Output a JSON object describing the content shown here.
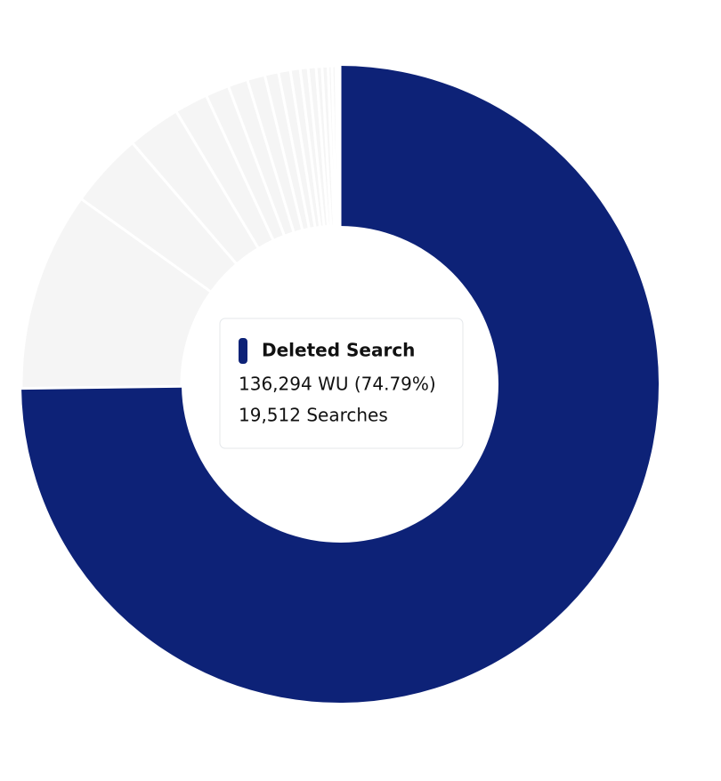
{
  "chart_data": {
    "type": "donut",
    "categories": [
      "Deleted Search",
      null,
      null,
      null,
      null,
      null,
      null,
      null,
      null,
      null,
      null,
      null,
      null,
      null,
      null,
      null,
      null,
      null,
      null
    ],
    "values": [
      74.79,
      10.1,
      3.8,
      2.7,
      1.7,
      1.2,
      1.0,
      0.9,
      0.7,
      0.6,
      0.5,
      0.4,
      0.4,
      0.3,
      0.3,
      0.2,
      0.2,
      0.1,
      0.1
    ],
    "value_labels": [
      "136,294 WU (74.79%)",
      null,
      null,
      null,
      null,
      null,
      null,
      null,
      null,
      null,
      null,
      null,
      null,
      null,
      null,
      null,
      null,
      null,
      null
    ],
    "secondary_labels": [
      "19,512 Searches",
      null,
      null,
      null,
      null,
      null,
      null,
      null,
      null,
      null,
      null,
      null,
      null,
      null,
      null,
      null,
      null,
      null,
      null
    ],
    "highlight_color": "#0d2277",
    "color": "#f5f5f5",
    "highlighted": 0
  }
}
